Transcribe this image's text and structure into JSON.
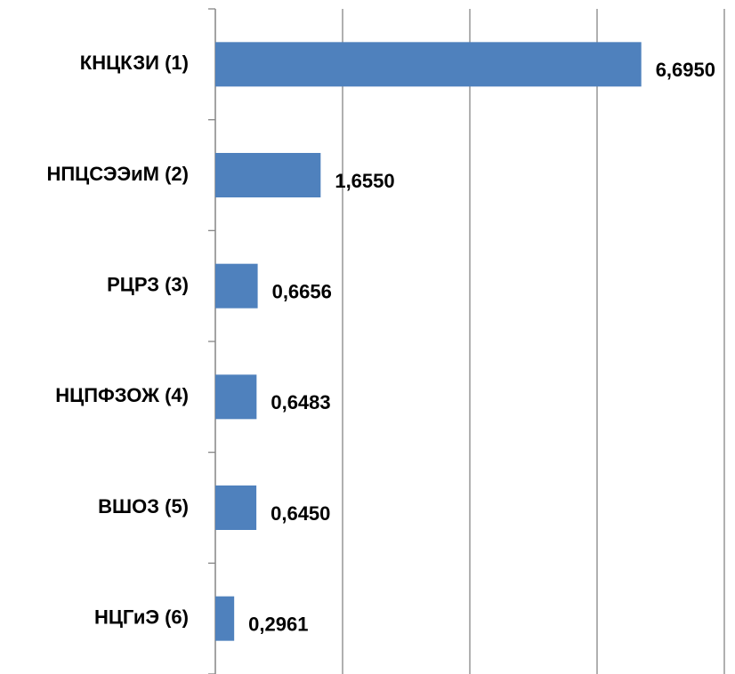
{
  "chart_data": {
    "type": "barh",
    "categories": [
      "КНЦКЗИ (1)",
      "НПЦСЭЭиМ (2)",
      "РЦРЗ (3)",
      "НЦПФЗОЖ (4)",
      "ВШОЗ (5)",
      "НЦГиЭ (6)"
    ],
    "values": [
      6.695,
      1.655,
      0.6656,
      0.6483,
      0.645,
      0.2961
    ],
    "value_labels": [
      "6,6950",
      "1,6550",
      "0,6656",
      "0,6483",
      "0,6450",
      "0,2961"
    ],
    "color": "#4f81bd",
    "xlim": [
      0,
      8
    ],
    "xticks": [
      0,
      2,
      4,
      6,
      8
    ],
    "grid": true
  }
}
